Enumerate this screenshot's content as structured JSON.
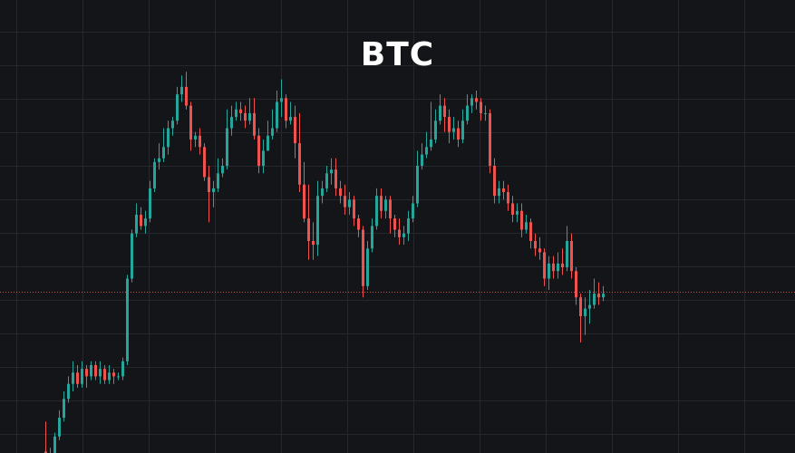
{
  "chart_data": {
    "type": "candlestick",
    "title": "BTC",
    "current_price": 46.5,
    "ylim": [
      0,
      100
    ],
    "grid": true,
    "series": [
      {
        "ohlc": [
          [
            4,
            1,
            12,
            0
          ],
          [
            1,
            2,
            5,
            0
          ],
          [
            2,
            8,
            9,
            1
          ],
          [
            8,
            13,
            15,
            7
          ],
          [
            13,
            18,
            20,
            12
          ],
          [
            18,
            22,
            24,
            17
          ],
          [
            22,
            25,
            28,
            20
          ],
          [
            25,
            22,
            27,
            21
          ],
          [
            22,
            26,
            28,
            21
          ],
          [
            26,
            24,
            27,
            21
          ],
          [
            24,
            27,
            28,
            23
          ],
          [
            27,
            24,
            28,
            23
          ],
          [
            24,
            26,
            28,
            22
          ],
          [
            26,
            23,
            27,
            22
          ],
          [
            23,
            25,
            27,
            22
          ],
          [
            25,
            24,
            26,
            22
          ],
          [
            24,
            24,
            25,
            23
          ],
          [
            24,
            28,
            29,
            23
          ],
          [
            28,
            50,
            51,
            27
          ],
          [
            50,
            62,
            63,
            49
          ],
          [
            62,
            67,
            70,
            61
          ],
          [
            67,
            64,
            69,
            63
          ],
          [
            64,
            66,
            68,
            62
          ],
          [
            66,
            74,
            76,
            65
          ],
          [
            74,
            81,
            82,
            73
          ],
          [
            81,
            82,
            86,
            79
          ],
          [
            82,
            85,
            90,
            81
          ],
          [
            85,
            90,
            92,
            83
          ],
          [
            90,
            92,
            93,
            88
          ],
          [
            92,
            99,
            101,
            91
          ],
          [
            99,
            101,
            104,
            97
          ],
          [
            101,
            96,
            105,
            95
          ],
          [
            96,
            87,
            97,
            84
          ],
          [
            87,
            88,
            89,
            85
          ],
          [
            88,
            85,
            90,
            83
          ],
          [
            85,
            77,
            86,
            76
          ],
          [
            77,
            73,
            80,
            65
          ],
          [
            73,
            74,
            76,
            69
          ],
          [
            74,
            78,
            82,
            73
          ],
          [
            78,
            80,
            82,
            77
          ],
          [
            80,
            90,
            95,
            79
          ],
          [
            90,
            93,
            96,
            88
          ],
          [
            93,
            95,
            97,
            92
          ],
          [
            95,
            94,
            97,
            92
          ],
          [
            94,
            92,
            96,
            90
          ],
          [
            92,
            94,
            98,
            91
          ],
          [
            94,
            88,
            98,
            87
          ],
          [
            88,
            80,
            90,
            78
          ],
          [
            80,
            84,
            87,
            78
          ],
          [
            84,
            88,
            92,
            84
          ],
          [
            88,
            90,
            95,
            87
          ],
          [
            90,
            97,
            100,
            89
          ],
          [
            97,
            98,
            103,
            93
          ],
          [
            98,
            92,
            99,
            90
          ],
          [
            92,
            93,
            97,
            91
          ],
          [
            93,
            86,
            96,
            82
          ],
          [
            86,
            75,
            94,
            73
          ],
          [
            75,
            66,
            81,
            65
          ],
          [
            66,
            60,
            75,
            55
          ],
          [
            60,
            59,
            65,
            55
          ],
          [
            59,
            72,
            76,
            56
          ],
          [
            72,
            74,
            76,
            70
          ],
          [
            74,
            78,
            80,
            73
          ],
          [
            78,
            79,
            82,
            75
          ],
          [
            79,
            74,
            82,
            72
          ],
          [
            74,
            72,
            76,
            70
          ],
          [
            72,
            69,
            75,
            67
          ],
          [
            69,
            71,
            73,
            67
          ],
          [
            71,
            66,
            72,
            64
          ],
          [
            66,
            63,
            67,
            61
          ],
          [
            63,
            48,
            64,
            45
          ],
          [
            48,
            58,
            60,
            47
          ],
          [
            58,
            64,
            66,
            57
          ],
          [
            64,
            72,
            74,
            63
          ],
          [
            72,
            68,
            74,
            66
          ],
          [
            68,
            71,
            72,
            66
          ],
          [
            71,
            66,
            72,
            62
          ],
          [
            66,
            63,
            67,
            61
          ],
          [
            63,
            61,
            66,
            59
          ],
          [
            61,
            62,
            64,
            59
          ],
          [
            62,
            66,
            68,
            60
          ],
          [
            66,
            70,
            72,
            65
          ],
          [
            70,
            80,
            84,
            69
          ],
          [
            80,
            83,
            86,
            79
          ],
          [
            83,
            85,
            89,
            82
          ],
          [
            85,
            87,
            97,
            84
          ],
          [
            87,
            92,
            95,
            86
          ],
          [
            92,
            96,
            99,
            91
          ],
          [
            96,
            93,
            98,
            89
          ],
          [
            93,
            89,
            95,
            86
          ],
          [
            89,
            90,
            93,
            87
          ],
          [
            90,
            87,
            92,
            85
          ],
          [
            87,
            92,
            95,
            86
          ],
          [
            92,
            96,
            99,
            91
          ],
          [
            96,
            98,
            99,
            94
          ],
          [
            98,
            97,
            100,
            95
          ],
          [
            97,
            94,
            98,
            92
          ],
          [
            94,
            94,
            96,
            92
          ],
          [
            94,
            80,
            95,
            78
          ],
          [
            80,
            72,
            82,
            70
          ],
          [
            72,
            74,
            76,
            70
          ],
          [
            74,
            73,
            76,
            71
          ],
          [
            73,
            70,
            75,
            68
          ],
          [
            70,
            67,
            72,
            65
          ],
          [
            67,
            68,
            70,
            65
          ],
          [
            68,
            63,
            70,
            61
          ],
          [
            63,
            65,
            67,
            62
          ],
          [
            65,
            60,
            66,
            58
          ],
          [
            60,
            58,
            62,
            56
          ],
          [
            58,
            57,
            61,
            55
          ],
          [
            57,
            50,
            58,
            48
          ],
          [
            50,
            54,
            56,
            47
          ],
          [
            54,
            52,
            56,
            50
          ],
          [
            52,
            54,
            57,
            50
          ],
          [
            54,
            53,
            58,
            51
          ],
          [
            53,
            60,
            64,
            52
          ],
          [
            60,
            52,
            62,
            50
          ],
          [
            52,
            45,
            53,
            43
          ],
          [
            45,
            40,
            46,
            33
          ],
          [
            40,
            42,
            45,
            35
          ],
          [
            42,
            43,
            47,
            38
          ],
          [
            43,
            46,
            50,
            42
          ],
          [
            46,
            45,
            49,
            43
          ],
          [
            45,
            46,
            48,
            44
          ]
        ]
      }
    ],
    "colors": {
      "up": "#26a69a",
      "down": "#ef5350",
      "price_line": "#c0504d",
      "grid": "#25272c",
      "background": "#141518",
      "title": "#ffffff"
    }
  }
}
